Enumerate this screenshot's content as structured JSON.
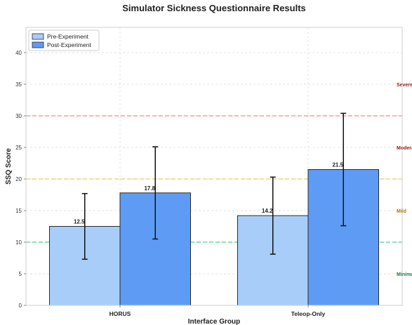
{
  "chart_data": {
    "type": "bar",
    "title": "Simulator Sickness Questionnaire Results",
    "xlabel": "Interface Group",
    "ylabel": "SSQ Score",
    "ylim": [
      0,
      44
    ],
    "yticks": [
      "0",
      "5",
      "10",
      "15",
      "20",
      "25",
      "30",
      "35",
      "40"
    ],
    "grid": true,
    "legend_position": "top-left",
    "categories": [
      "HORUS",
      "Teleop-Only"
    ],
    "series": [
      {
        "name": "Pre-Experiment",
        "color": "#a8cdf8",
        "values": [
          12.5,
          14.2
        ],
        "value_labels": [
          "12.5",
          "14.2"
        ],
        "error_low": [
          7.3,
          8.1
        ],
        "error_high": [
          17.7,
          20.3
        ]
      },
      {
        "name": "Post-Experiment",
        "color": "#5e9bf5",
        "values": [
          17.8,
          21.5
        ],
        "value_labels": [
          "17.8",
          "21.5"
        ],
        "error_low": [
          10.5,
          12.6
        ],
        "error_high": [
          25.1,
          30.4
        ]
      }
    ],
    "thresholds": [
      {
        "y": 10,
        "color": "#4cd18a",
        "label": "Minimal",
        "label_y": 5,
        "label_color": "#1e7a3a"
      },
      {
        "y": 20,
        "color": "#f4cc4a",
        "label": "Mild",
        "label_y": 15,
        "label_color": "#b07810"
      },
      {
        "y": 30,
        "color": "#f28b82",
        "label": "Moderate",
        "label_y": 25,
        "label_color": "#a01818"
      },
      {
        "y": null,
        "color": "#f28b82",
        "label": "Severe",
        "label_y": 35,
        "label_color": "#a01818"
      }
    ]
  }
}
